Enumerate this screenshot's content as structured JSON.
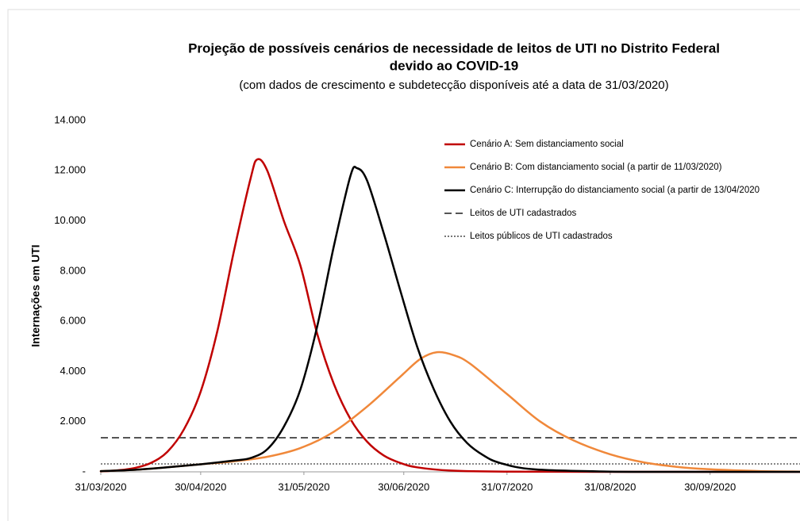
{
  "chart_data": {
    "type": "line",
    "title": [
      "Projeção de possíveis cenários de necessidade de leitos de UTI no Distrito Federal",
      "devido ao COVID-19"
    ],
    "subtitle": "(com dados de crescimento e subdetecção disponíveis até a data de 31/03/2020)",
    "y_label": "Internações em UTI",
    "xlim": [
      "2020-03-31",
      "2020-10-27"
    ],
    "xticks": [
      {
        "value": "2020-03-31",
        "label": "31/03/2020"
      },
      {
        "value": "2020-04-30",
        "label": "30/04/2020"
      },
      {
        "value": "2020-05-31",
        "label": "31/05/2020"
      },
      {
        "value": "2020-06-30",
        "label": "30/06/2020"
      },
      {
        "value": "2020-07-31",
        "label": "31/07/2020"
      },
      {
        "value": "2020-08-31",
        "label": "31/08/2020"
      },
      {
        "value": "2020-09-30",
        "label": "30/09/2020"
      }
    ],
    "ylim": [
      0,
      14000
    ],
    "yticks": [
      {
        "value": 0,
        "label": "-"
      },
      {
        "value": 2000,
        "label": "2.000"
      },
      {
        "value": 4000,
        "label": "4.000"
      },
      {
        "value": 6000,
        "label": "6.000"
      },
      {
        "value": 8000,
        "label": "8.000"
      },
      {
        "value": 10000,
        "label": "10.000"
      },
      {
        "value": 12000,
        "label": "12.000"
      },
      {
        "value": 14000,
        "label": "14.000"
      }
    ],
    "series": [
      {
        "name": "Cenário A: Sem distanciamento social",
        "color": "#c00000",
        "x": [
          "2020-03-31",
          "2020-04-05",
          "2020-04-10",
          "2020-04-15",
          "2020-04-20",
          "2020-04-25",
          "2020-04-30",
          "2020-05-05",
          "2020-05-10",
          "2020-05-15",
          "2020-05-17",
          "2020-05-20",
          "2020-05-25",
          "2020-05-30",
          "2020-06-04",
          "2020-06-09",
          "2020-06-14",
          "2020-06-19",
          "2020-06-24",
          "2020-06-29",
          "2020-07-04",
          "2020-07-14",
          "2020-07-31",
          "2020-08-31",
          "2020-10-27"
        ],
        "values": [
          20,
          60,
          150,
          350,
          800,
          1700,
          3200,
          5600,
          8800,
          11700,
          12450,
          12000,
          10000,
          8200,
          5500,
          3500,
          2100,
          1200,
          650,
          350,
          180,
          50,
          5,
          0,
          0
        ]
      },
      {
        "name": "Cenário B: Com distanciamento social (a partir de 11/03/2020)",
        "color": "#f0883a",
        "x": [
          "2020-03-31",
          "2020-04-10",
          "2020-04-20",
          "2020-04-30",
          "2020-05-10",
          "2020-05-20",
          "2020-05-30",
          "2020-06-09",
          "2020-06-19",
          "2020-06-29",
          "2020-07-05",
          "2020-07-10",
          "2020-07-15",
          "2020-07-20",
          "2020-07-31",
          "2020-08-10",
          "2020-08-20",
          "2020-08-31",
          "2020-09-10",
          "2020-09-20",
          "2020-09-30",
          "2020-10-15",
          "2020-10-27"
        ],
        "values": [
          30,
          80,
          180,
          300,
          420,
          600,
          950,
          1600,
          2600,
          3800,
          4500,
          4770,
          4650,
          4300,
          3100,
          2000,
          1250,
          700,
          380,
          200,
          100,
          30,
          10
        ]
      },
      {
        "name": "Cenário C: Interrupção do distanciamento social (a partir de 13/04/2020",
        "color": "#000000",
        "x": [
          "2020-03-31",
          "2020-04-10",
          "2020-04-20",
          "2020-04-30",
          "2020-05-10",
          "2020-05-15",
          "2020-05-20",
          "2020-05-25",
          "2020-05-30",
          "2020-06-04",
          "2020-06-09",
          "2020-06-14",
          "2020-06-16",
          "2020-06-19",
          "2020-06-24",
          "2020-06-29",
          "2020-07-04",
          "2020-07-09",
          "2020-07-14",
          "2020-07-19",
          "2020-07-24",
          "2020-07-29",
          "2020-08-08",
          "2020-08-31",
          "2020-09-30",
          "2020-10-27"
        ],
        "values": [
          30,
          80,
          180,
          300,
          450,
          550,
          900,
          1800,
          3300,
          5800,
          9000,
          11800,
          12100,
          11600,
          9500,
          7200,
          5000,
          3300,
          2000,
          1150,
          650,
          350,
          100,
          10,
          0,
          0
        ]
      }
    ],
    "reference_lines": [
      {
        "name": "Leitos de UTI cadastrados",
        "value": 1360,
        "color": "#555555",
        "style": "dashed"
      },
      {
        "name": "Leitos públicos de UTI cadastrados",
        "value": 316,
        "color": "#777777",
        "style": "dotted"
      }
    ]
  }
}
